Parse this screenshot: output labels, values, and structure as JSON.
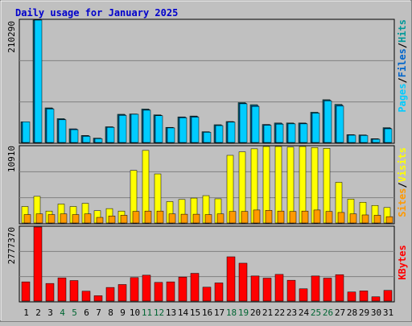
{
  "chart_data": [
    {
      "type": "bar",
      "title": "Daily usage for January 2025",
      "categories": [
        "1",
        "2",
        "3",
        "4",
        "5",
        "6",
        "7",
        "8",
        "9",
        "10",
        "11",
        "12",
        "13",
        "14",
        "15",
        "16",
        "17",
        "18",
        "19",
        "20",
        "21",
        "22",
        "23",
        "24",
        "25",
        "26",
        "27",
        "28",
        "29",
        "30",
        "31"
      ],
      "weekend_days": [
        "4",
        "5",
        "11",
        "12",
        "18",
        "19",
        "25",
        "26"
      ],
      "ymax_label": "210290",
      "ylim": [
        0,
        210290
      ],
      "right_label": {
        "parts": [
          "Pages",
          "/",
          "Files",
          "/",
          "Hits"
        ]
      },
      "series": [
        {
          "name": "Hits",
          "color": "#009999",
          "values": [
            35500,
            210290,
            59500,
            41000,
            23500,
            12000,
            7500,
            27000,
            48500,
            49000,
            57500,
            47500,
            26000,
            44000,
            45500,
            18500,
            30500,
            36000,
            68500,
            65000,
            31000,
            33500,
            33500,
            33500,
            52000,
            73500,
            65500,
            13500,
            13000,
            6500,
            25500
          ]
        },
        {
          "name": "Files",
          "color": "#0066cc",
          "values": [
            35500,
            210290,
            58500,
            40000,
            23000,
            11500,
            7000,
            26500,
            47500,
            48500,
            56500,
            46500,
            25500,
            43500,
            44500,
            18000,
            29500,
            35500,
            67500,
            63500,
            30500,
            32500,
            32500,
            33000,
            51000,
            72500,
            64000,
            13000,
            12500,
            6000,
            24500
          ]
        },
        {
          "name": "Pages",
          "color": "#00ccff",
          "values": [
            35500,
            210290,
            57500,
            39000,
            22000,
            10500,
            6500,
            26000,
            46500,
            48500,
            55500,
            46000,
            25000,
            42500,
            43500,
            17500,
            29000,
            35000,
            66500,
            62000,
            29500,
            31500,
            32000,
            32000,
            50500,
            71500,
            62500,
            12500,
            12000,
            5500,
            23500
          ]
        }
      ]
    },
    {
      "type": "bar",
      "ymax_label": "10910",
      "ylim": [
        0,
        10910
      ],
      "right_label": {
        "parts": [
          "Sites",
          "/",
          "Visits"
        ]
      },
      "series": [
        {
          "name": "Visits",
          "color": "#ffff00",
          "values": [
            2350,
            3800,
            1700,
            2700,
            2350,
            2800,
            1750,
            2050,
            1700,
            7500,
            10350,
            7000,
            3050,
            3350,
            3550,
            3900,
            3450,
            9650,
            10150,
            10580,
            10910,
            10910,
            10820,
            10910,
            10760,
            10650,
            5800,
            3400,
            2950,
            2500,
            2200
          ]
        },
        {
          "name": "Sites",
          "color": "#ff9900",
          "values": [
            1200,
            1300,
            1200,
            1300,
            1200,
            1300,
            800,
            1000,
            1100,
            1650,
            1700,
            1700,
            1300,
            1250,
            1250,
            1200,
            1300,
            1650,
            1650,
            1850,
            1800,
            1700,
            1650,
            1700,
            1850,
            1650,
            1500,
            1300,
            1150,
            1100,
            900
          ]
        }
      ]
    },
    {
      "type": "bar",
      "ymax_label": "2777370",
      "ylim": [
        0,
        2777370
      ],
      "right_label": {
        "parts": [
          "KBytes"
        ]
      },
      "series": [
        {
          "name": "KBytes",
          "color": "#ff0000",
          "values": [
            720000,
            2777370,
            660000,
            870000,
            770000,
            370000,
            200000,
            510000,
            620000,
            880000,
            970000,
            700000,
            720000,
            900000,
            1040000,
            520000,
            680000,
            1660000,
            1420000,
            940000,
            860000,
            1000000,
            780000,
            460000,
            940000,
            860000,
            990000,
            340000,
            380000,
            160000,
            400000
          ]
        }
      ]
    }
  ]
}
